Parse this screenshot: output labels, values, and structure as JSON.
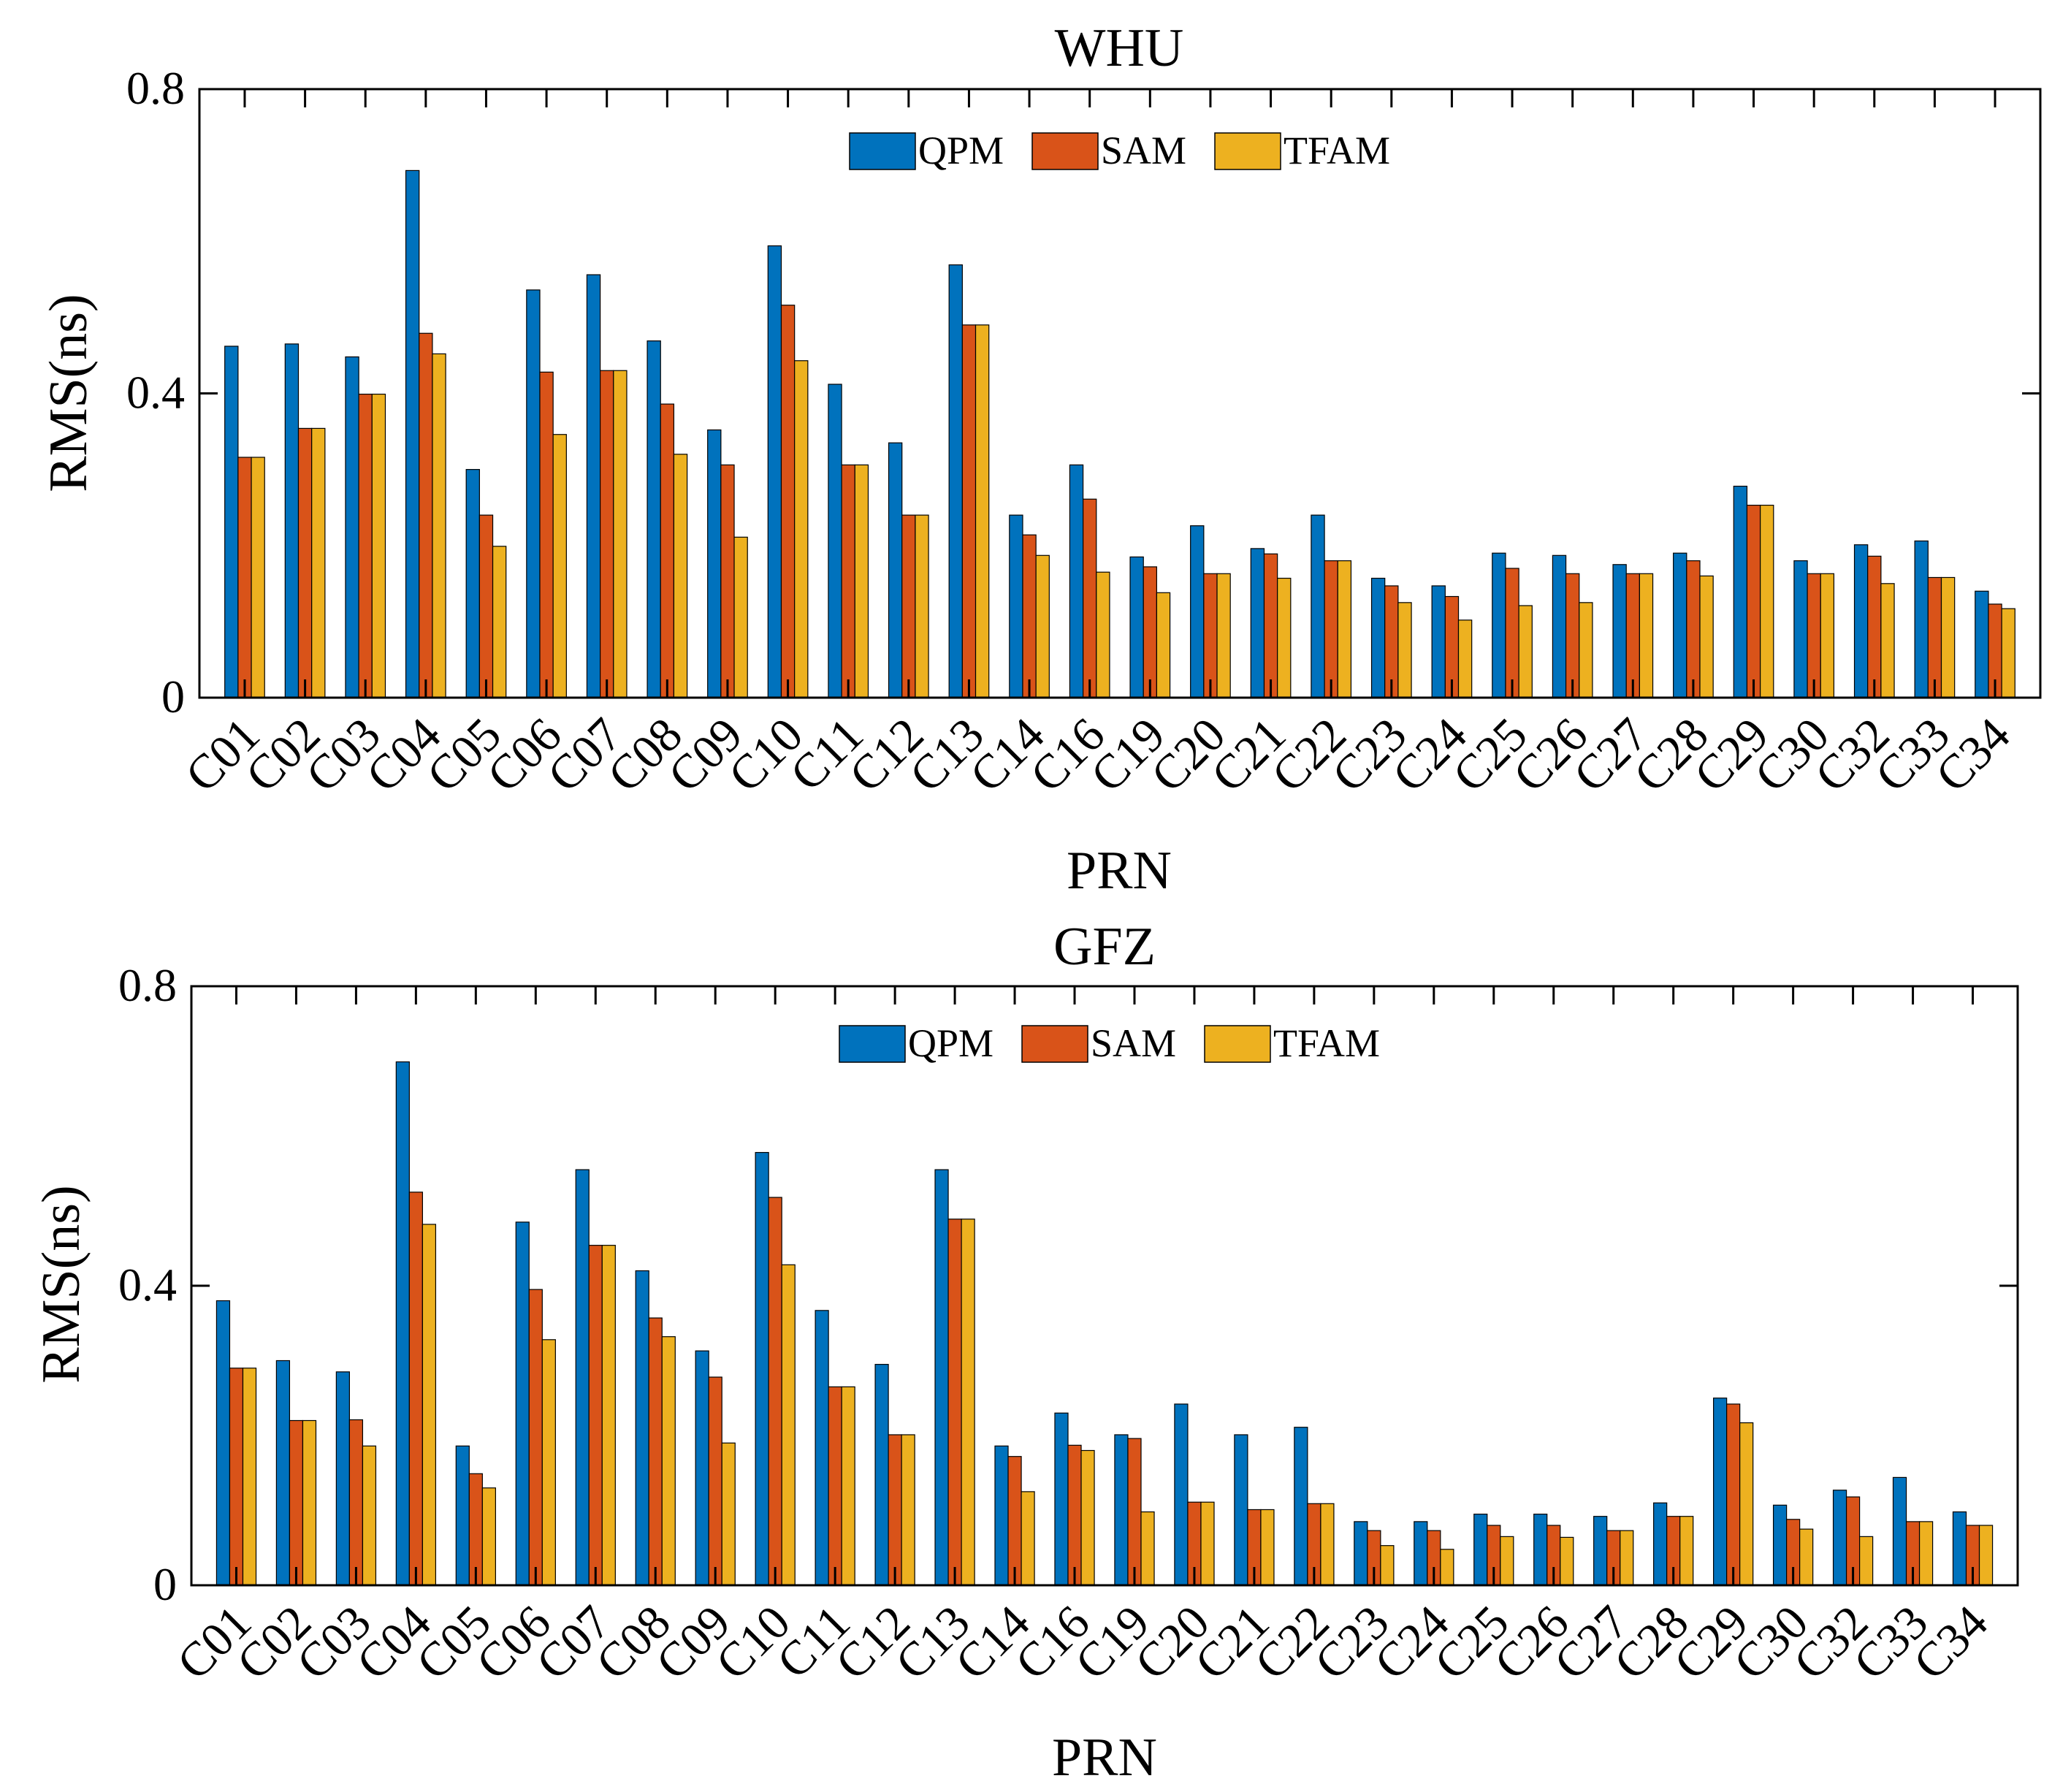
{
  "chart_data": [
    {
      "type": "bar",
      "title": "WHU",
      "xlabel": "PRN",
      "ylabel": "RMS(ns)",
      "ylim": [
        0,
        0.8
      ],
      "yticks": [
        0,
        0.4,
        0.8
      ],
      "ytick_labels": [
        "0",
        "0.4",
        "0.8"
      ],
      "legend_position": "top-center",
      "categories": [
        "C01",
        "C02",
        "C03",
        "C04",
        "C05",
        "C06",
        "C07",
        "C08",
        "C09",
        "C10",
        "C11",
        "C12",
        "C13",
        "C14",
        "C16",
        "C19",
        "C20",
        "C21",
        "C22",
        "C23",
        "C24",
        "C25",
        "C26",
        "C27",
        "C28",
        "C29",
        "C30",
        "C32",
        "C33",
        "C34"
      ],
      "series": [
        {
          "name": "QPM",
          "color": "#0072BD",
          "values": [
            0.462,
            0.465,
            0.448,
            0.693,
            0.3,
            0.536,
            0.556,
            0.469,
            0.352,
            0.594,
            0.412,
            0.335,
            0.569,
            0.24,
            0.306,
            0.185,
            0.226,
            0.196,
            0.24,
            0.157,
            0.147,
            0.19,
            0.187,
            0.175,
            0.19,
            0.278,
            0.18,
            0.201,
            0.206,
            0.14
          ]
        },
        {
          "name": "SAM",
          "color": "#D95319",
          "values": [
            0.316,
            0.354,
            0.399,
            0.479,
            0.24,
            0.428,
            0.43,
            0.386,
            0.306,
            0.516,
            0.306,
            0.24,
            0.49,
            0.214,
            0.261,
            0.172,
            0.163,
            0.189,
            0.18,
            0.147,
            0.133,
            0.17,
            0.163,
            0.163,
            0.18,
            0.253,
            0.163,
            0.186,
            0.158,
            0.123
          ]
        },
        {
          "name": "TFAM",
          "color": "#EDB120",
          "values": [
            0.316,
            0.354,
            0.399,
            0.452,
            0.199,
            0.346,
            0.43,
            0.32,
            0.211,
            0.443,
            0.306,
            0.24,
            0.49,
            0.187,
            0.165,
            0.138,
            0.163,
            0.157,
            0.18,
            0.125,
            0.102,
            0.121,
            0.125,
            0.163,
            0.16,
            0.253,
            0.163,
            0.15,
            0.158,
            0.117
          ]
        }
      ]
    },
    {
      "type": "bar",
      "title": "GFZ",
      "xlabel": "PRN",
      "ylabel": "RMS(ns)",
      "ylim": [
        0,
        0.8
      ],
      "yticks": [
        0,
        0.4,
        0.8
      ],
      "ytick_labels": [
        "0",
        "0.4",
        "0.8"
      ],
      "legend_position": "top-center",
      "categories": [
        "C01",
        "C02",
        "C03",
        "C04",
        "C05",
        "C06",
        "C07",
        "C08",
        "C09",
        "C10",
        "C11",
        "C12",
        "C13",
        "C14",
        "C16",
        "C19",
        "C20",
        "C21",
        "C22",
        "C23",
        "C24",
        "C25",
        "C26",
        "C27",
        "C28",
        "C29",
        "C30",
        "C32",
        "C33",
        "C34"
      ],
      "series": [
        {
          "name": "QPM",
          "color": "#0072BD",
          "values": [
            0.38,
            0.3,
            0.285,
            0.699,
            0.186,
            0.485,
            0.555,
            0.42,
            0.313,
            0.578,
            0.367,
            0.295,
            0.555,
            0.186,
            0.23,
            0.201,
            0.242,
            0.201,
            0.211,
            0.085,
            0.085,
            0.095,
            0.095,
            0.092,
            0.11,
            0.25,
            0.107,
            0.127,
            0.144,
            0.098
          ]
        },
        {
          "name": "SAM",
          "color": "#D95319",
          "values": [
            0.29,
            0.22,
            0.221,
            0.525,
            0.149,
            0.395,
            0.454,
            0.357,
            0.278,
            0.518,
            0.265,
            0.201,
            0.489,
            0.172,
            0.187,
            0.196,
            0.111,
            0.101,
            0.109,
            0.073,
            0.073,
            0.08,
            0.08,
            0.073,
            0.092,
            0.242,
            0.088,
            0.118,
            0.085,
            0.08
          ]
        },
        {
          "name": "TFAM",
          "color": "#EDB120",
          "values": [
            0.29,
            0.22,
            0.186,
            0.482,
            0.13,
            0.328,
            0.454,
            0.332,
            0.19,
            0.428,
            0.265,
            0.201,
            0.489,
            0.125,
            0.18,
            0.098,
            0.111,
            0.101,
            0.109,
            0.053,
            0.048,
            0.065,
            0.064,
            0.073,
            0.092,
            0.217,
            0.075,
            0.065,
            0.085,
            0.08
          ]
        }
      ]
    }
  ]
}
